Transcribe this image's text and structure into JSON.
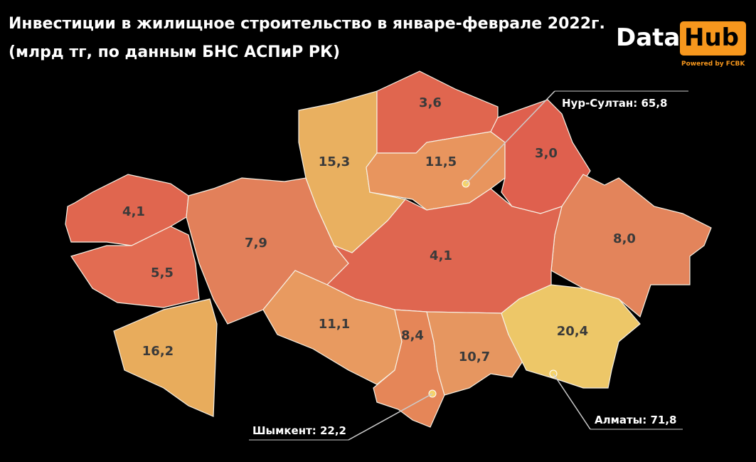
{
  "header": {
    "title_line1": "Инвестиции в жилищное строительство в январе-феврале 2022г.",
    "title_line2": "(млрд тг, по данным БНС АСПиР РК)"
  },
  "logo": {
    "data": "Data",
    "hub": "Hub",
    "powered": "Powered by FCBK"
  },
  "regions": [
    {
      "label": "4,1"
    },
    {
      "label": "5,5"
    },
    {
      "label": "16,2"
    },
    {
      "label": "7,9"
    },
    {
      "label": "15,3"
    },
    {
      "label": "3,6"
    },
    {
      "label": "11,5"
    },
    {
      "label": "3,0"
    },
    {
      "label": "8,0"
    },
    {
      "label": "4,1"
    },
    {
      "label": "11,1"
    },
    {
      "label": "8,4"
    },
    {
      "label": "10,7"
    },
    {
      "label": "20,4"
    }
  ],
  "cities": [
    {
      "label": "Нур-Султан: 65,8"
    },
    {
      "label": "Шымкент: 22,2"
    },
    {
      "label": "Алматы: 71,8"
    }
  ]
}
